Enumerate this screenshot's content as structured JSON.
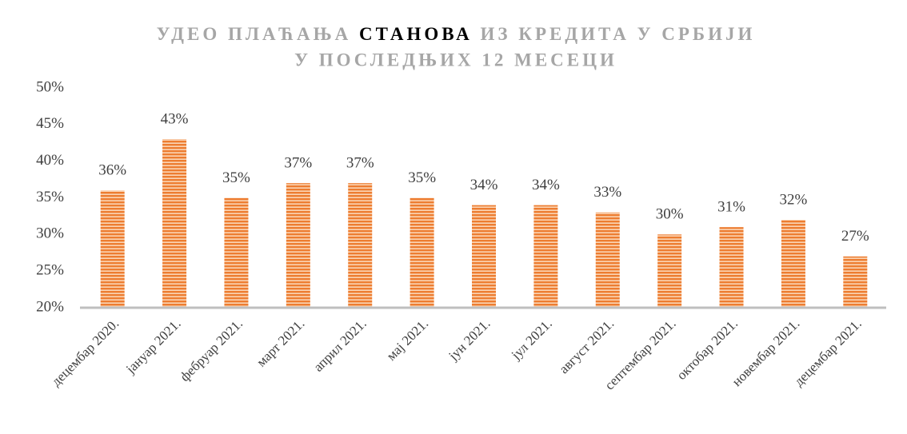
{
  "chart_data": {
    "type": "bar",
    "title": [
      "УДЕО ПЛАЋАЊА",
      "СТАНОВА",
      "ИЗ КРЕДИТА У СРБИЈИ",
      "У ПОСЛЕДЊИХ 12 МЕСЕЦИ"
    ],
    "categories": [
      "децембар 2020.",
      "јануар 2021.",
      "фебруар 2021.",
      "март 2021.",
      "април 2021.",
      "мај 2021.",
      "јун 2021.",
      "јул 2021.",
      "август 2021.",
      "септембар 2021.",
      "октобар 2021.",
      "новембар 2021.",
      "децембар 2021."
    ],
    "values": [
      36,
      43,
      35,
      37,
      37,
      35,
      34,
      34,
      33,
      30,
      31,
      32,
      27
    ],
    "value_labels": [
      "36%",
      "43%",
      "35%",
      "37%",
      "37%",
      "35%",
      "34%",
      "34%",
      "33%",
      "30%",
      "31%",
      "32%",
      "27%"
    ],
    "color": "#ed7d31",
    "ylim": [
      20,
      50
    ],
    "yticks": [
      {
        "value": 20,
        "label": "20%"
      },
      {
        "value": 25,
        "label": "25%"
      },
      {
        "value": 30,
        "label": "30%"
      },
      {
        "value": 35,
        "label": "35%"
      },
      {
        "value": 40,
        "label": "40%"
      },
      {
        "value": 45,
        "label": "45%"
      },
      {
        "value": 50,
        "label": "50%"
      }
    ],
    "grid": false
  }
}
